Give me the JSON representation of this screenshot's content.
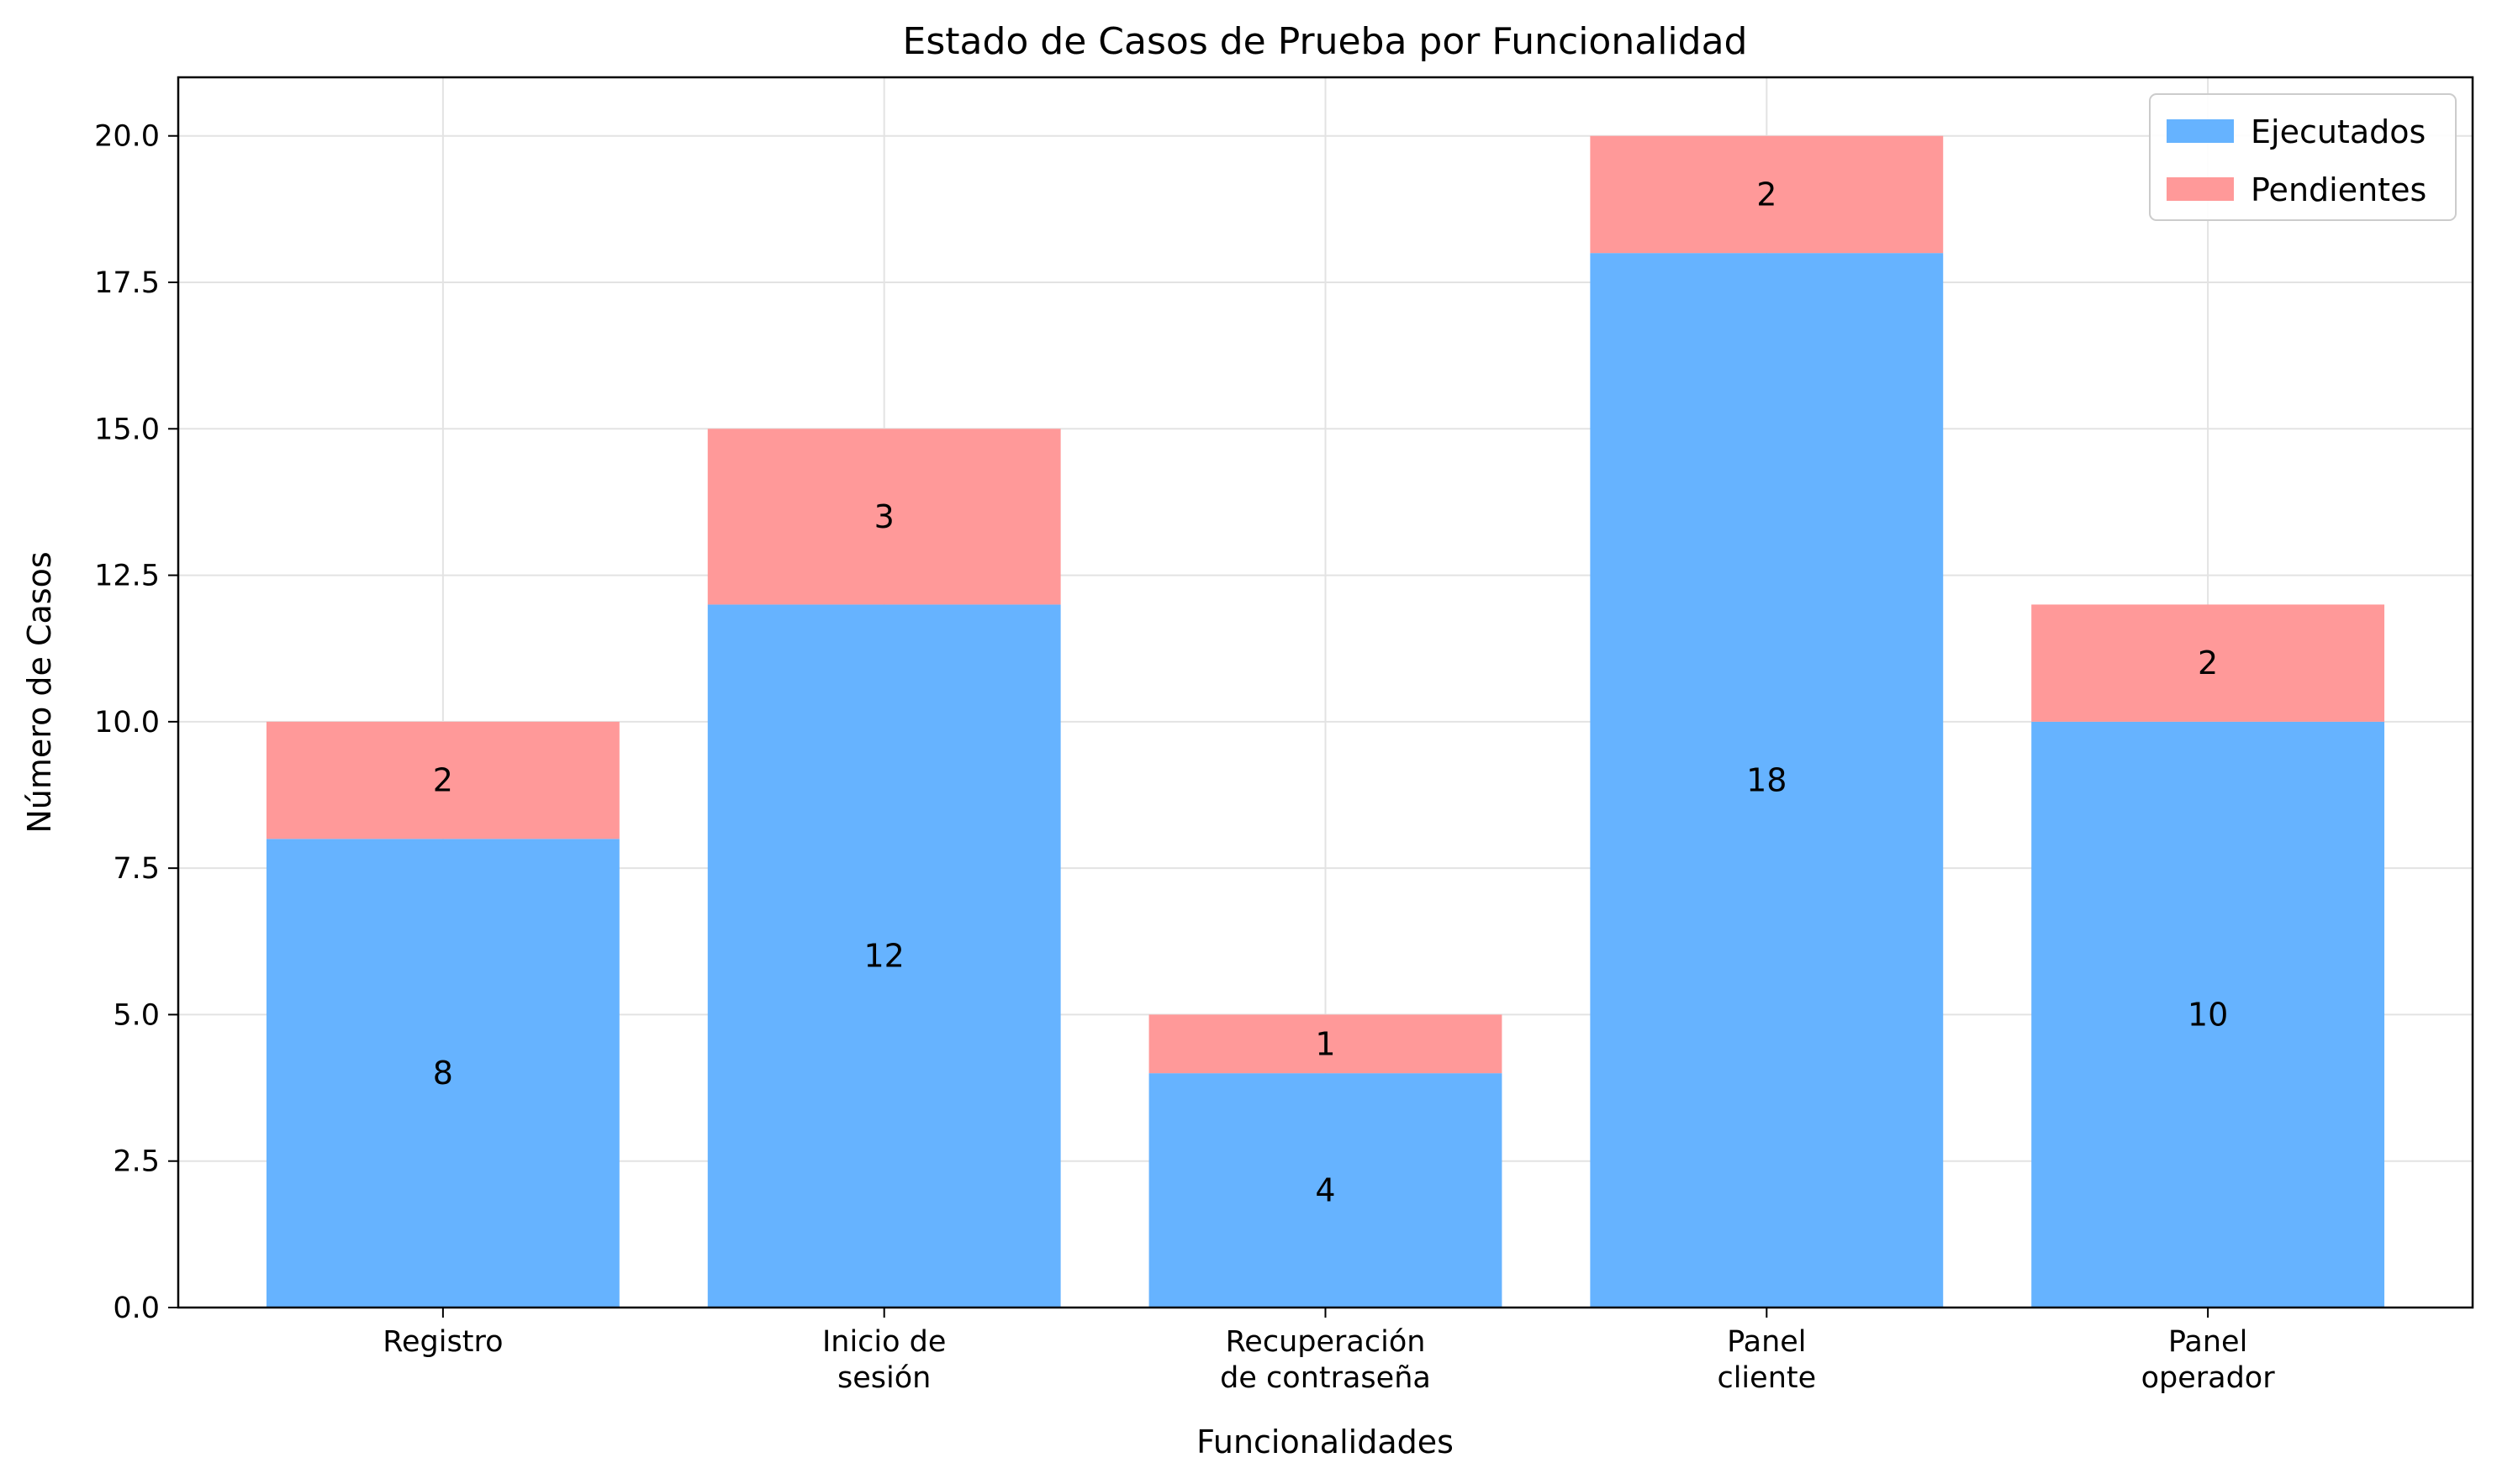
{
  "chart_data": {
    "type": "bar",
    "stacked": true,
    "title": "Estado de Casos de Prueba por Funcionalidad",
    "xlabel": "Funcionalidades",
    "ylabel": "Número de Casos",
    "categories": [
      [
        "Registro"
      ],
      [
        "Inicio de",
        "sesión"
      ],
      [
        "Recuperación",
        "de contraseña"
      ],
      [
        "Panel",
        "cliente"
      ],
      [
        "Panel",
        "operador"
      ]
    ],
    "series": [
      {
        "name": "Ejecutados",
        "values": [
          8,
          12,
          4,
          18,
          10
        ],
        "color": "#66b3ff"
      },
      {
        "name": "Pendientes",
        "values": [
          2,
          3,
          1,
          2,
          2
        ],
        "color": "#ff9999"
      }
    ],
    "ylim": [
      0,
      21
    ],
    "yticks": [
      "0.0",
      "2.5",
      "5.0",
      "7.5",
      "10.0",
      "12.5",
      "15.0",
      "17.5",
      "20.0"
    ],
    "grid": true,
    "legend": "top-right"
  }
}
